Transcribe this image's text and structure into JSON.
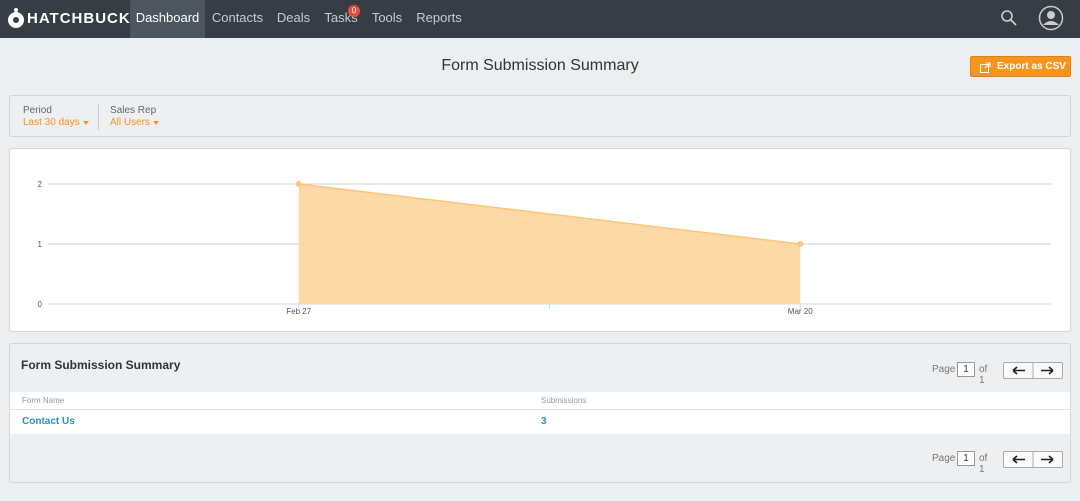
{
  "nav": {
    "brand": "HATCHBUCK",
    "items": [
      "Dashboard",
      "Contacts",
      "Deals",
      "Tasks",
      "Tools",
      "Reports"
    ],
    "active": "Dashboard",
    "tasks_badge": "0"
  },
  "header": {
    "title": "Form Submission Summary",
    "export": "Export as CSV"
  },
  "filters": [
    {
      "label": "Period",
      "value": "Last 30 days"
    },
    {
      "label": "Sales Rep",
      "value": "All Users"
    }
  ],
  "chart_data": {
    "type": "area",
    "categories": [
      "Feb 27",
      "Mar 20"
    ],
    "values": [
      2,
      1
    ],
    "color": "#fdd9a7",
    "line_color": "#fbc77a",
    "ylim": [
      0,
      2
    ],
    "yticks": [
      0,
      1,
      2
    ],
    "grid": true
  },
  "table": {
    "title": "Form Submission Summary",
    "pagination": {
      "label": "Page",
      "current": "1",
      "of": "of 1"
    },
    "columns": [
      "Form Name",
      "Submissions"
    ],
    "rows": [
      [
        "Contact Us",
        "3"
      ]
    ]
  }
}
